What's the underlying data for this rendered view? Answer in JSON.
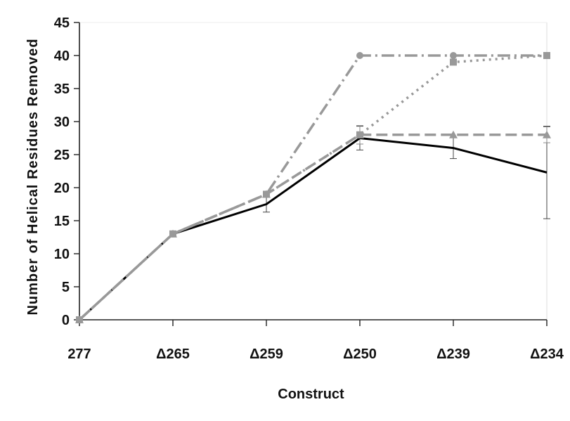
{
  "chart_data": {
    "type": "line",
    "title": "",
    "xlabel": "Construct",
    "ylabel": "Number of Helical Residues Removed",
    "categories": [
      "277",
      "Δ265",
      "Δ259",
      "Δ250",
      "Δ239",
      "Δ234"
    ],
    "ylim": [
      0,
      45
    ],
    "yticks": [
      0,
      5,
      10,
      15,
      20,
      25,
      30,
      35,
      40,
      45
    ],
    "grid": false,
    "legend": "none",
    "series": [
      {
        "values": [
          0,
          13,
          17.5,
          27.5,
          26,
          22.3
        ],
        "error": [
          0,
          0,
          1.2,
          1.8,
          1.6,
          7
        ],
        "color": "#000000",
        "style": "solid",
        "marker": "none"
      },
      {
        "values": [
          0,
          13,
          19,
          28,
          28,
          28
        ],
        "error": [
          0,
          0,
          0,
          1.4,
          0,
          1.2
        ],
        "color": "#999999",
        "style": "dash",
        "marker": "triangle"
      },
      {
        "values": [
          0,
          13,
          19,
          28,
          39,
          40
        ],
        "error": [
          0,
          0,
          0,
          0,
          0,
          0
        ],
        "color": "#999999",
        "style": "dot",
        "marker": "square"
      },
      {
        "values": [
          0,
          13,
          19,
          40,
          40,
          40
        ],
        "error": [
          0,
          0,
          0,
          0,
          0,
          0
        ],
        "color": "#999999",
        "style": "dashdot",
        "marker": "circle"
      }
    ]
  }
}
